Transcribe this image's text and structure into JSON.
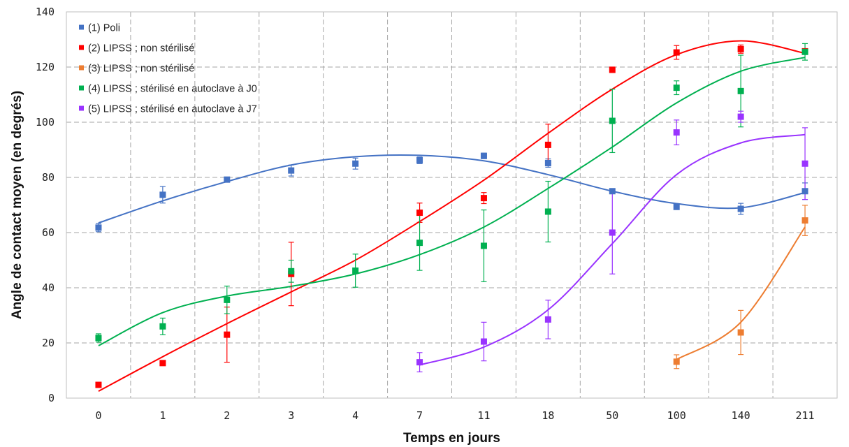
{
  "chart_data": {
    "type": "scatter",
    "title": "",
    "xlabel": "Temps en jours",
    "ylabel": "Angle de contact moyen (en degrés)",
    "categories": [
      "0",
      "1",
      "2",
      "3",
      "4",
      "7",
      "11",
      "18",
      "50",
      "100",
      "140",
      "211"
    ],
    "y_ticks": [
      "0",
      "20",
      "40",
      "60",
      "80",
      "100",
      "120",
      "140"
    ],
    "ylim": [
      0,
      140
    ],
    "grid": true,
    "legend_position": "top-left",
    "series": [
      {
        "name": "(1) Poli",
        "color": "#4472C4",
        "values": [
          61.8,
          73.7,
          79.2,
          82.5,
          85.0,
          86.2,
          87.8,
          85.2,
          75.0,
          69.3,
          68.6,
          75.0
        ],
        "errors": [
          1.5,
          3.0,
          0.8,
          2.0,
          2.0,
          1.2,
          1.0,
          1.5,
          0.8,
          0.6,
          2.0,
          3.0
        ],
        "trend": [
          63.5,
          71.5,
          78.5,
          84.5,
          87.5,
          88.0,
          86.0,
          81.0,
          75.0,
          70.5,
          69.0,
          74.5
        ]
      },
      {
        "name": "(2) LIPSS ; non stérilisé",
        "color": "#FF0000",
        "values": [
          4.8,
          12.7,
          23.0,
          45.0,
          null,
          67.2,
          72.5,
          91.8,
          119.0,
          125.3,
          126.5,
          125.7
        ],
        "errors": [
          0.5,
          0.5,
          10.0,
          11.5,
          null,
          3.5,
          2.0,
          7.5,
          1.0,
          2.5,
          1.5,
          1.0
        ],
        "trend": [
          2.5,
          15.0,
          27.0,
          38.5,
          50.0,
          64.0,
          79.0,
          96.0,
          112.0,
          124.5,
          129.5,
          125.0
        ]
      },
      {
        "name": "(3) LIPSS ; non stérilisé",
        "color": "#ED7D31",
        "values": [
          null,
          null,
          null,
          null,
          null,
          null,
          null,
          null,
          null,
          13.2,
          23.8,
          64.4
        ],
        "errors": [
          null,
          null,
          null,
          null,
          null,
          null,
          null,
          null,
          null,
          2.5,
          8.0,
          5.5
        ],
        "trend": [
          null,
          null,
          null,
          null,
          null,
          null,
          null,
          null,
          null,
          14.0,
          27.5,
          62.0
        ]
      },
      {
        "name": "(4) LIPSS ; stérilisé en autoclave à J0",
        "color": "#00B050",
        "values": [
          21.8,
          26.0,
          35.6,
          46.0,
          46.2,
          56.3,
          55.2,
          67.6,
          100.5,
          112.5,
          111.3,
          125.5
        ],
        "errors": [
          1.5,
          3.0,
          5.0,
          4.0,
          6.0,
          10.0,
          13.0,
          11.0,
          11.5,
          2.5,
          13.0,
          3.0
        ],
        "trend": [
          19.0,
          31.0,
          37.0,
          40.5,
          45.0,
          52.0,
          62.0,
          76.0,
          91.0,
          107.0,
          118.5,
          123.5
        ]
      },
      {
        "name": "(5) LIPSS ; stérilisé en autoclave à J7",
        "color": "#9933FF",
        "values": [
          null,
          null,
          null,
          null,
          null,
          13.0,
          20.5,
          28.5,
          60.0,
          96.3,
          102.0,
          85.0
        ],
        "errors": [
          null,
          null,
          null,
          null,
          null,
          3.5,
          7.0,
          7.0,
          15.0,
          4.5,
          2.0,
          13.0
        ],
        "trend": [
          null,
          null,
          null,
          null,
          null,
          12.0,
          18.5,
          32.0,
          56.0,
          81.0,
          92.5,
          95.5
        ]
      }
    ]
  }
}
